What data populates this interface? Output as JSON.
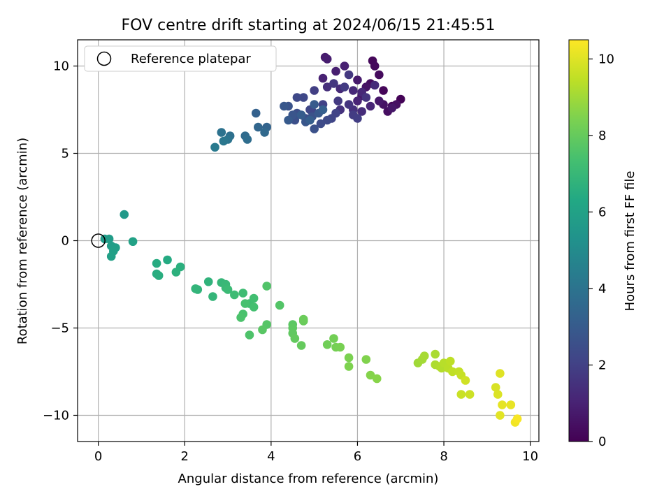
{
  "chart_data": {
    "type": "scatter",
    "title": "FOV centre drift starting at 2024/06/15 21:45:51",
    "xlabel": "Angular distance from reference (arcmin)",
    "ylabel": "Rotation from reference (arcmin)",
    "xlim": [
      -0.48,
      10.2
    ],
    "ylim": [
      -11.5,
      11.5
    ],
    "xticks": [
      0,
      2,
      4,
      6,
      8,
      10
    ],
    "yticks": [
      -10,
      -5,
      0,
      5,
      10
    ],
    "xtick_labels": [
      "0",
      "2",
      "4",
      "6",
      "8",
      "10"
    ],
    "ytick_labels": [
      "−10",
      "−5",
      "0",
      "5",
      "10"
    ],
    "grid": true,
    "legend": {
      "placement": "top-left",
      "entries": [
        {
          "label": "Reference platepar",
          "marker": "open-circle",
          "x": 0,
          "y": 0
        }
      ]
    },
    "colorbar": {
      "label": "Hours from first FF file",
      "colormap": "viridis",
      "range": [
        0,
        10.5
      ],
      "ticks": [
        0,
        2,
        4,
        6,
        8,
        10
      ],
      "tick_labels": [
        "0",
        "2",
        "4",
        "6",
        "8",
        "10"
      ]
    },
    "points": [
      [
        7.0,
        8.1,
        0.05
      ],
      [
        6.8,
        7.7,
        0.1
      ],
      [
        6.6,
        8.6,
        0.15
      ],
      [
        6.35,
        10.3,
        0.2
      ],
      [
        6.4,
        10.0,
        0.25
      ],
      [
        6.5,
        9.5,
        0.3
      ],
      [
        6.3,
        9.0,
        0.35
      ],
      [
        6.7,
        7.4,
        0.4
      ],
      [
        6.9,
        7.8,
        0.45
      ],
      [
        6.6,
        7.8,
        0.5
      ],
      [
        6.2,
        8.8,
        0.55
      ],
      [
        6.1,
        8.3,
        0.6
      ],
      [
        6.8,
        7.6,
        0.65
      ],
      [
        6.5,
        8.0,
        0.7
      ],
      [
        6.0,
        9.2,
        0.75
      ],
      [
        5.25,
        10.5,
        0.8
      ],
      [
        5.3,
        10.4,
        0.85
      ],
      [
        5.5,
        9.7,
        0.9
      ],
      [
        5.7,
        10.0,
        0.95
      ],
      [
        5.2,
        9.3,
        1.0
      ],
      [
        6.0,
        8.0,
        1.05
      ],
      [
        6.3,
        7.7,
        1.1
      ],
      [
        6.1,
        8.5,
        1.15
      ],
      [
        5.9,
        8.6,
        1.2
      ],
      [
        5.6,
        8.7,
        1.25
      ],
      [
        6.4,
        8.9,
        1.3
      ],
      [
        6.1,
        7.4,
        1.35
      ],
      [
        5.3,
        8.8,
        1.4
      ],
      [
        5.9,
        7.5,
        1.45
      ],
      [
        5.6,
        7.5,
        1.5
      ],
      [
        6.2,
        8.2,
        1.55
      ],
      [
        5.8,
        7.8,
        1.6
      ],
      [
        5.45,
        9.0,
        1.65
      ],
      [
        5.8,
        9.5,
        1.7
      ],
      [
        5.55,
        8.0,
        1.75
      ],
      [
        5.7,
        8.8,
        1.8
      ],
      [
        5.9,
        7.2,
        1.85
      ],
      [
        6.0,
        7.0,
        1.9
      ],
      [
        5.0,
        8.6,
        1.95
      ],
      [
        4.95,
        7.4,
        2.0
      ],
      [
        5.2,
        7.8,
        2.05
      ],
      [
        5.5,
        7.3,
        2.1
      ],
      [
        5.4,
        7.0,
        2.15
      ],
      [
        4.9,
        7.5,
        2.2
      ],
      [
        4.75,
        8.2,
        2.25
      ],
      [
        4.6,
        8.2,
        2.3
      ],
      [
        5.3,
        6.9,
        2.35
      ],
      [
        5.15,
        6.7,
        2.4
      ],
      [
        4.8,
        7.0,
        2.45
      ],
      [
        4.6,
        7.3,
        2.5
      ],
      [
        4.55,
        6.9,
        2.55
      ],
      [
        5.0,
        6.4,
        2.6
      ],
      [
        4.95,
        7.1,
        2.65
      ],
      [
        4.4,
        7.7,
        2.7
      ],
      [
        4.5,
        7.2,
        2.75
      ],
      [
        4.8,
        6.8,
        2.8
      ],
      [
        4.3,
        7.7,
        2.85
      ],
      [
        5.1,
        7.3,
        2.9
      ],
      [
        4.4,
        6.9,
        2.95
      ],
      [
        5.0,
        7.8,
        3.0
      ],
      [
        4.7,
        7.2,
        3.05
      ],
      [
        4.9,
        6.9,
        3.1
      ],
      [
        5.2,
        7.5,
        3.15
      ],
      [
        3.65,
        7.3,
        3.25
      ],
      [
        3.9,
        6.5,
        3.35
      ],
      [
        3.7,
        6.5,
        3.45
      ],
      [
        3.85,
        6.2,
        3.55
      ],
      [
        3.4,
        6.0,
        3.65
      ],
      [
        3.45,
        5.8,
        3.75
      ],
      [
        3.05,
        6.0,
        3.85
      ],
      [
        2.85,
        6.2,
        3.95
      ],
      [
        3.0,
        5.8,
        4.05
      ],
      [
        2.9,
        5.7,
        4.15
      ],
      [
        2.7,
        5.35,
        4.3
      ],
      [
        0.6,
        1.5,
        5.6
      ],
      [
        0.15,
        0.1,
        5.7
      ],
      [
        0.25,
        0.1,
        5.75
      ],
      [
        0.3,
        -0.3,
        5.8
      ],
      [
        0.4,
        -0.4,
        5.85
      ],
      [
        0.35,
        -0.6,
        5.9
      ],
      [
        0.3,
        -0.9,
        5.95
      ],
      [
        0.8,
        -0.05,
        6.0
      ],
      [
        1.6,
        -1.1,
        6.4
      ],
      [
        1.35,
        -1.3,
        6.45
      ],
      [
        1.35,
        -1.9,
        6.5
      ],
      [
        1.4,
        -2.0,
        6.55
      ],
      [
        1.9,
        -1.5,
        6.6
      ],
      [
        1.8,
        -1.8,
        6.65
      ],
      [
        2.55,
        -2.35,
        6.75
      ],
      [
        2.3,
        -2.8,
        6.8
      ],
      [
        2.25,
        -2.75,
        6.85
      ],
      [
        2.65,
        -3.2,
        6.9
      ],
      [
        2.85,
        -2.4,
        6.95
      ],
      [
        2.95,
        -2.5,
        7.0
      ],
      [
        2.95,
        -2.7,
        7.05
      ],
      [
        3.0,
        -2.8,
        7.1
      ],
      [
        3.15,
        -3.1,
        7.15
      ],
      [
        3.35,
        -3.0,
        7.2
      ],
      [
        3.5,
        -3.6,
        7.25
      ],
      [
        3.6,
        -3.3,
        7.3
      ],
      [
        3.6,
        -3.8,
        7.35
      ],
      [
        3.4,
        -3.6,
        7.4
      ],
      [
        3.35,
        -4.2,
        7.45
      ],
      [
        3.3,
        -4.4,
        7.5
      ],
      [
        3.5,
        -5.4,
        7.55
      ],
      [
        3.9,
        -2.6,
        7.6
      ],
      [
        4.2,
        -3.7,
        7.65
      ],
      [
        3.9,
        -4.8,
        7.7
      ],
      [
        3.8,
        -5.1,
        7.75
      ],
      [
        4.5,
        -4.8,
        7.8
      ],
      [
        4.5,
        -5.0,
        7.85
      ],
      [
        4.5,
        -5.3,
        7.9
      ],
      [
        4.55,
        -5.6,
        7.95
      ],
      [
        4.7,
        -6.0,
        8.0
      ],
      [
        4.75,
        -4.6,
        8.05
      ],
      [
        4.75,
        -4.5,
        8.1
      ],
      [
        5.3,
        -5.95,
        8.2
      ],
      [
        5.45,
        -5.6,
        8.25
      ],
      [
        5.5,
        -6.1,
        8.3
      ],
      [
        5.6,
        -6.1,
        8.35
      ],
      [
        5.8,
        -6.7,
        8.4
      ],
      [
        5.8,
        -7.2,
        8.45
      ],
      [
        6.2,
        -6.8,
        8.5
      ],
      [
        6.3,
        -7.7,
        8.55
      ],
      [
        6.45,
        -7.9,
        8.6
      ],
      [
        7.4,
        -7.0,
        9.0
      ],
      [
        7.5,
        -6.8,
        9.05
      ],
      [
        7.55,
        -6.6,
        9.1
      ],
      [
        7.8,
        -6.5,
        9.15
      ],
      [
        7.8,
        -7.1,
        9.2
      ],
      [
        7.9,
        -7.2,
        9.25
      ],
      [
        7.95,
        -7.3,
        9.3
      ],
      [
        8.0,
        -7.0,
        9.35
      ],
      [
        8.1,
        -7.3,
        9.4
      ],
      [
        8.15,
        -6.9,
        9.45
      ],
      [
        8.2,
        -7.5,
        9.5
      ],
      [
        8.35,
        -7.5,
        9.55
      ],
      [
        8.4,
        -7.7,
        9.6
      ],
      [
        8.4,
        -8.8,
        9.65
      ],
      [
        8.6,
        -8.8,
        9.7
      ],
      [
        8.5,
        -8.0,
        9.75
      ],
      [
        9.2,
        -8.4,
        9.9
      ],
      [
        9.25,
        -8.8,
        9.95
      ],
      [
        9.3,
        -7.6,
        10.0
      ],
      [
        9.3,
        -10.0,
        10.05
      ],
      [
        9.35,
        -9.4,
        10.1
      ],
      [
        9.55,
        -9.4,
        10.15
      ],
      [
        9.65,
        -10.4,
        10.3
      ],
      [
        9.7,
        -10.2,
        10.4
      ]
    ]
  }
}
